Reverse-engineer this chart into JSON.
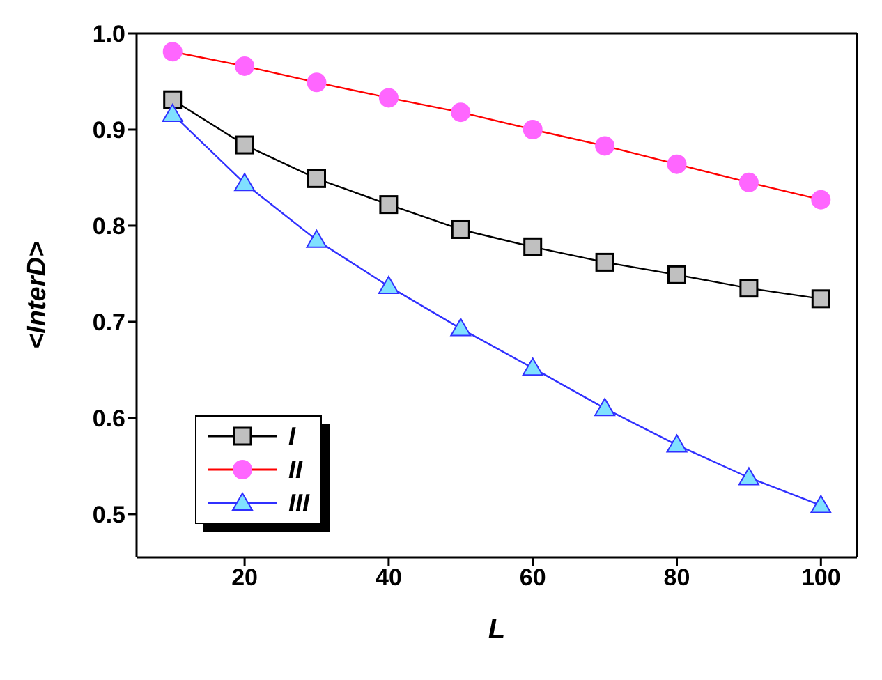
{
  "chart_data": {
    "type": "line",
    "xlabel": "L",
    "ylabel": "<InterD>",
    "x": [
      10,
      20,
      30,
      40,
      50,
      60,
      70,
      80,
      90,
      100
    ],
    "series": [
      {
        "name": "I",
        "color": "#000000",
        "marker": "square",
        "values": [
          0.931,
          0.884,
          0.849,
          0.822,
          0.796,
          0.778,
          0.762,
          0.749,
          0.735,
          0.724
        ]
      },
      {
        "name": "II",
        "color": "#ff0000",
        "marker": "circle",
        "values": [
          0.981,
          0.966,
          0.949,
          0.933,
          0.918,
          0.9,
          0.883,
          0.864,
          0.845,
          0.827
        ]
      },
      {
        "name": "III",
        "color": "#3030ff",
        "marker": "triangle",
        "values": [
          0.916,
          0.844,
          0.785,
          0.737,
          0.693,
          0.652,
          0.61,
          0.572,
          0.538,
          0.509
        ]
      }
    ],
    "xlim": [
      5,
      105
    ],
    "xticks": [
      20,
      40,
      60,
      80,
      100
    ],
    "ylim": [
      0.455,
      1.0
    ],
    "yticks": [
      0.5,
      0.6,
      0.7,
      0.8,
      0.9,
      {
        "value": 1,
        "label": "1.0"
      }
    ],
    "grid": false,
    "legend": "bottom left"
  }
}
